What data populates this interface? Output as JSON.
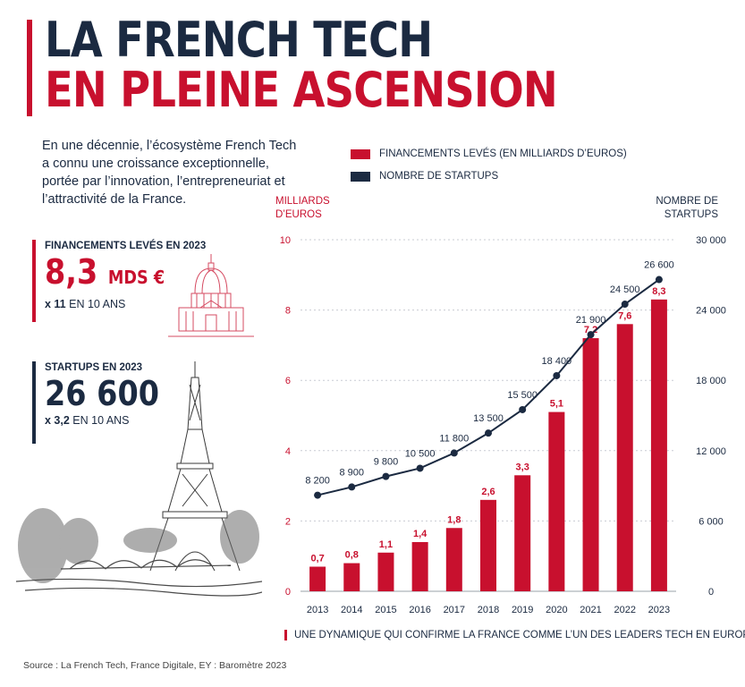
{
  "title": {
    "line1": "LA FRENCH TECH",
    "line2": "EN PLEINE ASCENSION"
  },
  "intro": "En une décennie, l’écosystème French Tech a connu une croissance exceptionnelle, portée par l’innovation, l’entrepreneuriat et l’attractivité de la France.",
  "stats": {
    "funding": {
      "label": "FINANCEMENTS LEVÉS EN 2023",
      "value": "8,3",
      "unit": "MDS €",
      "mult": "x 11",
      "sub": "EN 10 ANS"
    },
    "startups": {
      "label": "STARTUPS EN 2023",
      "value": "26 600",
      "mult": "x 3,2",
      "sub": "EN 10 ANS"
    }
  },
  "colors": {
    "red": "#c8102e",
    "navy": "#1b2a41"
  },
  "icons": {
    "dome": "les-invalides-dome-icon",
    "tower": "eiffel-tower-icon"
  },
  "chart_data": {
    "type": "bar",
    "categories": [
      "2013",
      "2014",
      "2015",
      "2016",
      "2017",
      "2018",
      "2019",
      "2020",
      "2021",
      "2022",
      "2023"
    ],
    "series": [
      {
        "name": "FINANCEMENTS LEVÉS",
        "name_suffix": "(EN MILLIARDS D’EUROS)",
        "type": "bar",
        "axis": "left",
        "values": [
          0.7,
          0.8,
          1.1,
          1.4,
          1.8,
          2.6,
          3.3,
          5.1,
          7.2,
          7.6,
          8.3
        ],
        "labels": [
          "0,7",
          "0,8",
          "1,1",
          "1,4",
          "1,8",
          "2,6",
          "3,3",
          "5,1",
          "7,2",
          "7,6",
          "8,3"
        ]
      },
      {
        "name": "NOMBRE DE STARTUPS",
        "type": "line",
        "axis": "right",
        "values": [
          8200,
          8900,
          9800,
          10500,
          11800,
          13500,
          15500,
          18400,
          21900,
          24500,
          26600
        ],
        "labels": [
          "8 200",
          "8 900",
          "9 800",
          "10 500",
          "11 800",
          "13 500",
          "15 500",
          "18 400",
          "21 900",
          "24 500",
          "26 600"
        ]
      }
    ],
    "y_left": {
      "label_line1": "MILLIARDS",
      "label_line2": "D’EUROS",
      "ylim": [
        0,
        10
      ],
      "ticks": [
        "0",
        "2",
        "4",
        "6",
        "8",
        "10"
      ]
    },
    "y_right": {
      "label_line1": "NOMBRE DE",
      "label_line2": "STARTUPS",
      "ylim": [
        0,
        30000
      ],
      "ticks": [
        "0",
        "6 000",
        "12 000",
        "18 000",
        "24 000",
        "30 000"
      ]
    },
    "grid": true,
    "legend": "top"
  },
  "footer_note": "UNE DYNAMIQUE QUI CONFIRME LA FRANCE COMME L’UN DES LEADERS TECH EN EUROPE.",
  "source": "Source : La French Tech, France Digitale, EY : Baromètre 2023"
}
